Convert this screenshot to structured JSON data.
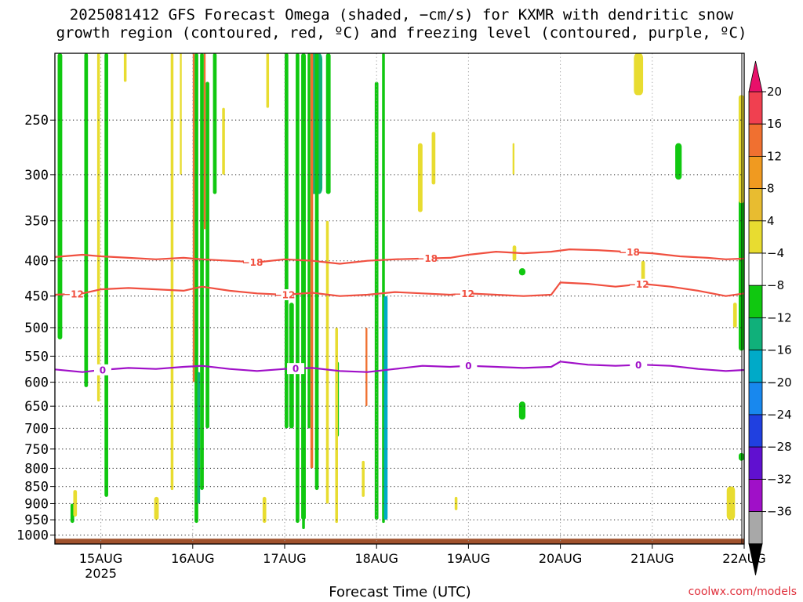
{
  "title": {
    "line1": "2025081412 GFS Forecast Omega (shaded, −cm/s) for KXMR with dendritic snow",
    "line2": "growth region (contoured, red, ºC) and freezing level (contoured, purple, ºC)"
  },
  "credit": "coolwx.com/models",
  "chart_data": {
    "type": "heatmap",
    "xlabel": "Forecast Time (UTC)",
    "ylabel": "",
    "x_ticks": [
      "15AUG",
      "16AUG",
      "17AUG",
      "18AUG",
      "19AUG",
      "20AUG",
      "21AUG",
      "22AUG"
    ],
    "x_tick_year": "2025",
    "x_range_days": [
      14.5,
      22.0
    ],
    "y_ticks": [
      "250",
      "300",
      "350",
      "400",
      "450",
      "500",
      "550",
      "600",
      "650",
      "700",
      "750",
      "800",
      "850",
      "900",
      "950",
      "1000"
    ],
    "y_scale": "log",
    "y_range": [
      200,
      1030
    ],
    "y_reversed": true,
    "grid": true,
    "colorbar": {
      "labels": [
        "20",
        "16",
        "12",
        "8",
        "4",
        "−4",
        "−8",
        "−12",
        "−16",
        "−20",
        "−24",
        "−28",
        "−32",
        "−36"
      ],
      "colors": [
        "#f04050",
        "#f07030",
        "#f09a20",
        "#e8bc30",
        "#e8dc30",
        "#ffffff",
        "#10c810",
        "#10b07a",
        "#00aac8",
        "#1888ee",
        "#2040e0",
        "#6010d0",
        "#a010c8",
        "#a8a8a8"
      ],
      "top_arrow_color": "#e8106a",
      "bottom_arrow_color": "#000000"
    },
    "series": [
      {
        "name": "−18",
        "color": "#f05040",
        "x": [
          14.5,
          14.8,
          15.0,
          15.3,
          15.6,
          15.9,
          16.1,
          16.4,
          16.7,
          17.0,
          17.3,
          17.6,
          17.9,
          18.2,
          18.5,
          18.8,
          19.0,
          19.3,
          19.6,
          19.9,
          20.1,
          20.4,
          20.7,
          21.0,
          21.3,
          21.6,
          21.8,
          22.0
        ],
        "y": [
          395,
          392,
          394,
          396,
          398,
          396,
          398,
          400,
          402,
          398,
          400,
          404,
          400,
          398,
          397,
          396,
          392,
          388,
          390,
          388,
          385,
          386,
          388,
          390,
          394,
          396,
          398,
          397
        ],
        "labels": [
          {
            "x": 16.65,
            "text": "−18"
          },
          {
            "x": 18.55,
            "text": "−18"
          },
          {
            "x": 20.75,
            "text": "−18"
          }
        ]
      },
      {
        "name": "−12",
        "color": "#f05040",
        "x": [
          14.5,
          14.8,
          15.0,
          15.3,
          15.6,
          15.9,
          16.1,
          16.4,
          16.7,
          17.0,
          17.3,
          17.6,
          17.9,
          18.2,
          18.5,
          18.8,
          19.0,
          19.3,
          19.6,
          19.9,
          20.0,
          20.3,
          20.6,
          20.9,
          21.2,
          21.5,
          21.8,
          22.0
        ],
        "y": [
          448,
          446,
          440,
          438,
          440,
          442,
          436,
          442,
          446,
          448,
          445,
          450,
          448,
          444,
          446,
          448,
          446,
          448,
          450,
          448,
          430,
          432,
          436,
          432,
          436,
          442,
          450,
          446
        ],
        "labels": [
          {
            "x": 14.7,
            "text": "−12"
          },
          {
            "x": 17.0,
            "text": "−12"
          },
          {
            "x": 18.95,
            "text": "−12"
          },
          {
            "x": 20.85,
            "text": "−12"
          }
        ]
      },
      {
        "name": "0",
        "color": "#a010c8",
        "x": [
          14.5,
          14.8,
          15.0,
          15.3,
          15.6,
          15.9,
          16.1,
          16.4,
          16.7,
          17.0,
          17.3,
          17.6,
          17.9,
          18.2,
          18.5,
          18.8,
          19.0,
          19.3,
          19.6,
          19.9,
          20.0,
          20.3,
          20.6,
          20.9,
          21.2,
          21.5,
          21.8,
          22.0
        ],
        "y": [
          575,
          580,
          576,
          572,
          574,
          570,
          568,
          574,
          578,
          574,
          572,
          578,
          580,
          574,
          568,
          570,
          568,
          570,
          572,
          570,
          560,
          566,
          568,
          566,
          568,
          574,
          578,
          576
        ],
        "labels": [
          {
            "x": 15.02,
            "text": "0"
          },
          {
            "x": 17.12,
            "text": "0"
          },
          {
            "x": 19.0,
            "text": "0"
          },
          {
            "x": 20.85,
            "text": "0"
          }
        ]
      }
    ],
    "omega_regions": [
      {
        "x": [
          14.53,
          14.58
        ],
        "y": [
          200,
          520
        ],
        "value": -6
      },
      {
        "x": [
          14.82,
          14.86
        ],
        "y": [
          200,
          610
        ],
        "value": -6
      },
      {
        "x": [
          14.67,
          14.71
        ],
        "y": [
          900,
          960
        ],
        "value": -6
      },
      {
        "x": [
          15.04,
          15.08
        ],
        "y": [
          200,
          880
        ],
        "value": -6
      },
      {
        "x": [
          16.02,
          16.06
        ],
        "y": [
          200,
          960
        ],
        "value": -6
      },
      {
        "x": [
          16.05,
          16.08
        ],
        "y": [
          580,
          900
        ],
        "value": -10
      },
      {
        "x": [
          16.08,
          16.12
        ],
        "y": [
          200,
          860
        ],
        "value": -6
      },
      {
        "x": [
          16.14,
          16.18
        ],
        "y": [
          220,
          700
        ],
        "value": -6
      },
      {
        "x": [
          16.22,
          16.26
        ],
        "y": [
          200,
          320
        ],
        "value": -6
      },
      {
        "x": [
          17.0,
          17.04
        ],
        "y": [
          200,
          700
        ],
        "value": -6
      },
      {
        "x": [
          17.05,
          17.1
        ],
        "y": [
          460,
          700
        ],
        "value": -6
      },
      {
        "x": [
          17.12,
          17.16
        ],
        "y": [
          200,
          960
        ],
        "value": -6
      },
      {
        "x": [
          17.18,
          17.23
        ],
        "y": [
          200,
          950
        ],
        "value": -6
      },
      {
        "x": [
          17.19,
          17.22
        ],
        "y": [
          700,
          980
        ],
        "value": -6
      },
      {
        "x": [
          17.25,
          17.28
        ],
        "y": [
          200,
          700
        ],
        "value": -6
      },
      {
        "x": [
          17.28,
          17.41
        ],
        "y": [
          200,
          320
        ],
        "value": -10
      },
      {
        "x": [
          17.33,
          17.37
        ],
        "y": [
          200,
          860
        ],
        "value": -6
      },
      {
        "x": [
          17.45,
          17.5
        ],
        "y": [
          200,
          320
        ],
        "value": -6
      },
      {
        "x": [
          17.55,
          17.59
        ],
        "y": [
          560,
          720
        ],
        "value": -6
      },
      {
        "x": [
          17.98,
          18.02
        ],
        "y": [
          220,
          950
        ],
        "value": -6
      },
      {
        "x": [
          18.06,
          18.09
        ],
        "y": [
          200,
          960
        ],
        "value": -6
      },
      {
        "x": [
          18.08,
          18.12
        ],
        "y": [
          450,
          950
        ],
        "value": -14
      },
      {
        "x": [
          19.55,
          19.62
        ],
        "y": [
          410,
          420
        ],
        "value": -6
      },
      {
        "x": [
          19.55,
          19.62
        ],
        "y": [
          640,
          680
        ],
        "value": -6
      },
      {
        "x": [
          21.25,
          21.32
        ],
        "y": [
          270,
          305
        ],
        "value": -6
      },
      {
        "x": [
          21.94,
          22.0
        ],
        "y": [
          230,
          540
        ],
        "value": -6
      },
      {
        "x": [
          21.94,
          22.0
        ],
        "y": [
          760,
          780
        ],
        "value": -6
      },
      {
        "x": [
          14.7,
          14.74
        ],
        "y": [
          860,
          940
        ],
        "value": 6
      },
      {
        "x": [
          14.96,
          14.99
        ],
        "y": [
          200,
          640
        ],
        "value": 6
      },
      {
        "x": [
          15.25,
          15.28
        ],
        "y": [
          200,
          220
        ],
        "value": 6
      },
      {
        "x": [
          15.58,
          15.63
        ],
        "y": [
          880,
          950
        ],
        "value": 6
      },
      {
        "x": [
          15.76,
          15.79
        ],
        "y": [
          200,
          860
        ],
        "value": 6
      },
      {
        "x": [
          15.86,
          15.88
        ],
        "y": [
          200,
          300
        ],
        "value": 6
      },
      {
        "x": [
          16.0,
          16.02
        ],
        "y": [
          200,
          600
        ],
        "value": 14
      },
      {
        "x": [
          16.12,
          16.14
        ],
        "y": [
          200,
          360
        ],
        "value": 14
      },
      {
        "x": [
          16.32,
          16.35
        ],
        "y": [
          240,
          300
        ],
        "value": 6
      },
      {
        "x": [
          16.76,
          16.8
        ],
        "y": [
          880,
          960
        ],
        "value": 6
      },
      {
        "x": [
          16.8,
          16.83
        ],
        "y": [
          200,
          240
        ],
        "value": 6
      },
      {
        "x": [
          17.28,
          17.31
        ],
        "y": [
          200,
          800
        ],
        "value": 14
      },
      {
        "x": [
          17.45,
          17.48
        ],
        "y": [
          350,
          900
        ],
        "value": 6
      },
      {
        "x": [
          17.55,
          17.58
        ],
        "y": [
          500,
          960
        ],
        "value": 6
      },
      {
        "x": [
          17.84,
          17.87
        ],
        "y": [
          780,
          880
        ],
        "value": 6
      },
      {
        "x": [
          17.88,
          17.9
        ],
        "y": [
          500,
          650
        ],
        "value": 14
      },
      {
        "x": [
          18.45,
          18.5
        ],
        "y": [
          270,
          340
        ],
        "value": 6
      },
      {
        "x": [
          18.6,
          18.64
        ],
        "y": [
          260,
          310
        ],
        "value": 6
      },
      {
        "x": [
          18.85,
          18.88
        ],
        "y": [
          880,
          920
        ],
        "value": 6
      },
      {
        "x": [
          19.48,
          19.5
        ],
        "y": [
          270,
          300
        ],
        "value": 6
      },
      {
        "x": [
          19.48,
          19.52
        ],
        "y": [
          380,
          400
        ],
        "value": 6
      },
      {
        "x": [
          20.8,
          20.9
        ],
        "y": [
          200,
          230
        ],
        "value": 6
      },
      {
        "x": [
          20.88,
          20.92
        ],
        "y": [
          400,
          440
        ],
        "value": 6
      },
      {
        "x": [
          21.88,
          21.92
        ],
        "y": [
          460,
          500
        ],
        "value": 6
      },
      {
        "x": [
          21.81,
          21.9
        ],
        "y": [
          850,
          950
        ],
        "value": 6
      },
      {
        "x": [
          21.94,
          22.0
        ],
        "y": [
          230,
          330
        ],
        "value": 6
      }
    ],
    "surface_color": "#a0522d"
  }
}
